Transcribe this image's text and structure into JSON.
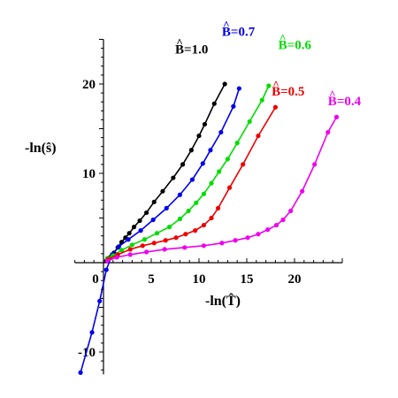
{
  "chart_data": {
    "type": "line",
    "title": "",
    "xlabel": "-ln(T̂)",
    "ylabel": "-ln(ŝ)",
    "xlim": [
      -3,
      25
    ],
    "ylim": [
      -12.5,
      25
    ],
    "x_ticks": [
      0,
      5,
      10,
      15,
      20
    ],
    "y_ticks": [
      -10,
      10,
      20
    ],
    "grid": false,
    "legend": "inline labels",
    "series": [
      {
        "name": "B̂=1.0",
        "color": "#000000",
        "points": [
          [
            0.3,
            0.2
          ],
          [
            0.7,
            0.6
          ],
          [
            1.1,
            1.1
          ],
          [
            1.5,
            1.7
          ],
          [
            1.9,
            2.3
          ],
          [
            2.3,
            2.8
          ],
          [
            2.7,
            3.3
          ],
          [
            3.2,
            4
          ],
          [
            3.8,
            4.7
          ],
          [
            4.5,
            5.6
          ],
          [
            5.3,
            6.8
          ],
          [
            6.2,
            8
          ],
          [
            7.3,
            9.5
          ],
          [
            8.3,
            11
          ],
          [
            9.2,
            12.6
          ],
          [
            10,
            14.2
          ],
          [
            10.6,
            15.5
          ],
          [
            11.6,
            17.8
          ],
          [
            12.7,
            20
          ]
        ]
      },
      {
        "name": "B̂=0.7",
        "color": "#0000ee",
        "points": [
          [
            -2.4,
            -12.3
          ],
          [
            -1.2,
            -7.8
          ],
          [
            -0.4,
            -4.3
          ],
          [
            0.3,
            -0.8
          ],
          [
            0.9,
            0.9
          ],
          [
            1.6,
            1.8
          ],
          [
            2.6,
            2.6
          ],
          [
            3.9,
            3.6
          ],
          [
            5.2,
            4.8
          ],
          [
            6.6,
            6.1
          ],
          [
            8,
            7.6
          ],
          [
            9.3,
            9.3
          ],
          [
            10.4,
            11.1
          ],
          [
            11.2,
            12.6
          ],
          [
            12.3,
            14.6
          ],
          [
            13.6,
            17.5
          ],
          [
            14.2,
            19.5
          ]
        ]
      },
      {
        "name": "B̂=0.6",
        "color": "#00dd00",
        "points": [
          [
            0.4,
            0.5
          ],
          [
            1,
            0.8
          ],
          [
            1.9,
            1.4
          ],
          [
            3,
            2
          ],
          [
            4.3,
            2.6
          ],
          [
            5.6,
            3.3
          ],
          [
            6.9,
            4
          ],
          [
            8,
            4.9
          ],
          [
            8.9,
            5.8
          ],
          [
            9.7,
            6.7
          ],
          [
            10.5,
            7.7
          ],
          [
            11.3,
            8.9
          ],
          [
            12.1,
            10.2
          ],
          [
            13,
            11.6
          ],
          [
            14,
            13.4
          ],
          [
            15.3,
            15.8
          ],
          [
            16.6,
            18.2
          ],
          [
            17.3,
            19.8
          ]
        ]
      },
      {
        "name": "B̂=0.5",
        "color": "#ee0000",
        "points": [
          [
            0.5,
            0.4
          ],
          [
            1.5,
            0.9
          ],
          [
            2.8,
            1.5
          ],
          [
            4.1,
            1.9
          ],
          [
            5.3,
            2.2
          ],
          [
            6.5,
            2.5
          ],
          [
            7.6,
            2.8
          ],
          [
            8.6,
            3.2
          ],
          [
            9.6,
            3.6
          ],
          [
            10.5,
            4.2
          ],
          [
            11.3,
            5
          ],
          [
            12,
            6.1
          ],
          [
            13.2,
            8.4
          ],
          [
            14.6,
            11
          ],
          [
            16.2,
            14.2
          ],
          [
            18,
            17.4
          ]
        ]
      },
      {
        "name": "B̂=0.4",
        "color": "#ee00ee",
        "points": [
          [
            0.4,
            0.2
          ],
          [
            1.4,
            0.6
          ],
          [
            2.8,
            0.9
          ],
          [
            4.5,
            1.2
          ],
          [
            6.4,
            1.5
          ],
          [
            8.5,
            1.7
          ],
          [
            10.5,
            1.9
          ],
          [
            12.4,
            2.2
          ],
          [
            13.8,
            2.5
          ],
          [
            15.1,
            2.8
          ],
          [
            16.2,
            3.2
          ],
          [
            17.2,
            3.7
          ],
          [
            18.1,
            4.2
          ],
          [
            18.8,
            4.8
          ],
          [
            19.6,
            5.8
          ],
          [
            20.8,
            8
          ],
          [
            22.1,
            11
          ],
          [
            23.5,
            14.6
          ],
          [
            24.4,
            16.3
          ]
        ]
      }
    ],
    "series_labels": [
      {
        "text": "B̂=1.0",
        "base": "B",
        "rest": "=1.0",
        "color": "#000000",
        "anchor": [
          7.5,
          23.4
        ]
      },
      {
        "text": "B̂=0.7",
        "base": "B",
        "rest": "=0.7",
        "color": "#0000ee",
        "anchor": [
          12.4,
          25.4
        ]
      },
      {
        "text": "B̂=0.6",
        "base": "B",
        "rest": "=0.6",
        "color": "#00dd00",
        "anchor": [
          18.3,
          23.9
        ]
      },
      {
        "text": "B̂=0.5",
        "base": "B",
        "rest": "=0.5",
        "color": "#ee0000",
        "anchor": [
          17.6,
          18.7
        ]
      },
      {
        "text": "B̂=0.4",
        "base": "B",
        "rest": "=0.4",
        "color": "#ee00ee",
        "anchor": [
          23.5,
          17.6
        ]
      }
    ]
  }
}
